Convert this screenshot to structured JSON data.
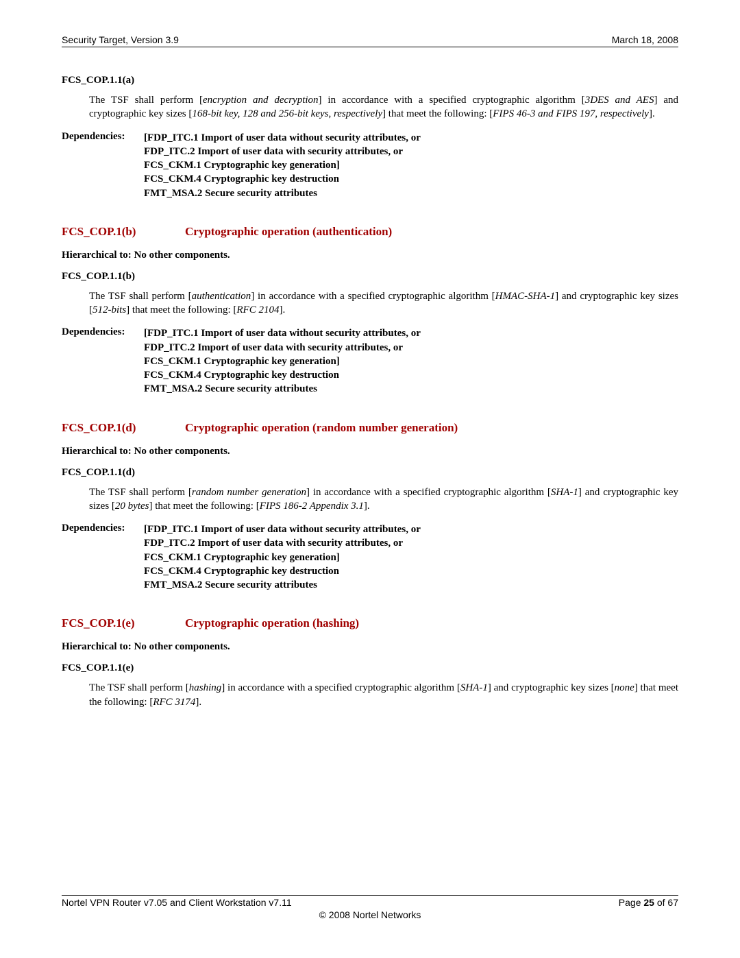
{
  "header": {
    "left": "Security Target, Version 3.9",
    "right": "March 18, 2008"
  },
  "footer": {
    "left": "Nortel VPN Router v7.05 and Client Workstation v7.11",
    "right_prefix": "Page ",
    "page_num": "25",
    "right_suffix": " of 67",
    "copy": "© 2008 Nortel Networks"
  },
  "hierarchical_label": "Hierarchical to: ",
  "hierarchical_value": "No other components.",
  "dependencies_label": "Dependencies:",
  "dep_lines": {
    "l1": "[FDP_ITC.1 Import of user data without security attributes, or",
    "l2": "FDP_ITC.2 Import of user data with security attributes, or",
    "l3": "FCS_CKM.1 Cryptographic key generation]",
    "l4": "FCS_CKM.4 Cryptographic key destruction",
    "l5": "FMT_MSA.2 Secure security attributes"
  },
  "sec_a": {
    "id": "FCS_COP.1.1(a)",
    "t1": "The TSF shall perform [",
    "i1": "encryption and decryption",
    "t2": "] in accordance with a specified cryptographic algorithm [",
    "i2": "3DES and AES",
    "t3": "] and cryptographic key sizes [",
    "i3": "168-bit key, 128 and 256-bit keys, respectively",
    "t4": "] that meet the following: [",
    "i4": "FIPS 46-3 and FIPS 197, respectively",
    "t5": "]."
  },
  "sec_b": {
    "code": "FCS_COP.1(b)",
    "title": "Cryptographic operation (authentication)",
    "id": "FCS_COP.1.1(b)",
    "t1": "The TSF shall perform [",
    "i1": "authentication",
    "t2": "] in accordance with a specified cryptographic algorithm [",
    "i2": "HMAC-SHA-1",
    "t3": "] and cryptographic key sizes [",
    "i3": "512-bits",
    "t4": "] that meet the following: [",
    "i4": "RFC 2104",
    "t5": "]."
  },
  "sec_d": {
    "code": "FCS_COP.1(d)",
    "title": "Cryptographic operation (random number generation)",
    "id": "FCS_COP.1.1(d)",
    "t1": "The TSF shall perform [",
    "i1": "random number generation",
    "t2": "] in accordance with a specified cryptographic algorithm [",
    "i2": "SHA-1",
    "t3": "] and cryptographic key sizes [",
    "i3": "20 bytes",
    "t4": "] that meet the following: [",
    "i4": "FIPS 186-2 Appendix 3.1",
    "t5": "]."
  },
  "sec_e": {
    "code": "FCS_COP.1(e)",
    "title": "Cryptographic operation (hashing)",
    "id": "FCS_COP.1.1(e)",
    "t1": "The TSF shall perform [",
    "i1": "hashing",
    "t2": "] in accordance with a specified cryptographic algorithm [",
    "i2": "SHA-1",
    "t3": "] and cryptographic key sizes [",
    "i3": "none",
    "t4": "] that meet the following: [",
    "i4": "RFC 3174",
    "t5": "]."
  }
}
